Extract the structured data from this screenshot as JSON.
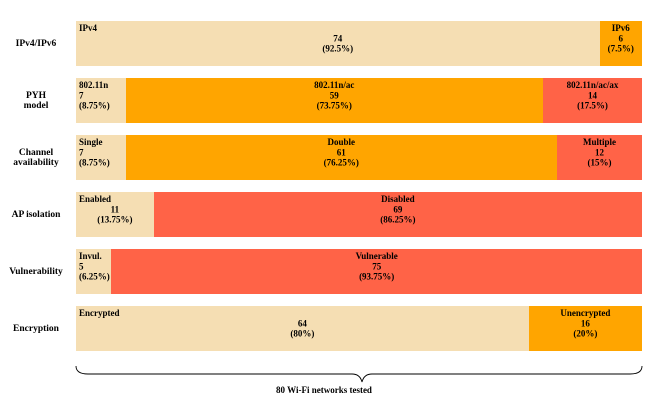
{
  "chart_data": {
    "type": "bar",
    "orientation": "horizontal",
    "stacked": true,
    "normalized": true,
    "total_label": "80 Wi-Fi networks tested",
    "rows": [
      {
        "label_lines": [
          "IPv4/IPv6"
        ],
        "segments": [
          {
            "name": "IPv4",
            "count": "74",
            "percent": "(92.5%)",
            "value": 74,
            "color": "#f5deb3"
          },
          {
            "name": "IPv6",
            "count": "6",
            "percent": "(7.5%)",
            "value": 6,
            "color": "#ffa500"
          }
        ]
      },
      {
        "label_lines": [
          "PYH",
          "model"
        ],
        "segments": [
          {
            "name": "802.11n",
            "count": "7",
            "percent": "(8.75%)",
            "value": 7,
            "color": "#f5deb3"
          },
          {
            "name": "802.11n/ac",
            "count": "59",
            "percent": "(73.75%)",
            "value": 59,
            "color": "#ffa500"
          },
          {
            "name": "802.11n/ac/ax",
            "count": "14",
            "percent": "(17.5%)",
            "value": 14,
            "color": "#ff6347"
          }
        ]
      },
      {
        "label_lines": [
          "Channel",
          "availability"
        ],
        "segments": [
          {
            "name": "Single",
            "count": "7",
            "percent": "(8.75%)",
            "value": 7,
            "color": "#f5deb3"
          },
          {
            "name": "Double",
            "count": "61",
            "percent": "(76.25%)",
            "value": 61,
            "color": "#ffa500"
          },
          {
            "name": "Multiple",
            "count": "12",
            "percent": "(15%)",
            "value": 12,
            "color": "#ff6347"
          }
        ]
      },
      {
        "label_lines": [
          "AP isolation"
        ],
        "segments": [
          {
            "name": "Enabled",
            "count": "11",
            "percent": "(13.75%)",
            "value": 11,
            "color": "#f5deb3"
          },
          {
            "name": "Disabled",
            "count": "69",
            "percent": "(86.25%)",
            "value": 69,
            "color": "#ff6347"
          }
        ]
      },
      {
        "label_lines": [
          "Vulnerability"
        ],
        "segments": [
          {
            "name": "Invul.",
            "count": "5",
            "percent": "(6.25%)",
            "value": 5,
            "color": "#f5deb3"
          },
          {
            "name": "Vulnerable",
            "count": "75",
            "percent": "(93.75%)",
            "value": 75,
            "color": "#ff6347"
          }
        ]
      },
      {
        "label_lines": [
          "Encryption"
        ],
        "segments": [
          {
            "name": "Encrypted",
            "count": "64",
            "percent": "(80%)",
            "value": 64,
            "color": "#f5deb3"
          },
          {
            "name": "Unencrypted",
            "count": "16",
            "percent": "(20%)",
            "value": 16,
            "color": "#ffa500"
          }
        ]
      }
    ]
  }
}
